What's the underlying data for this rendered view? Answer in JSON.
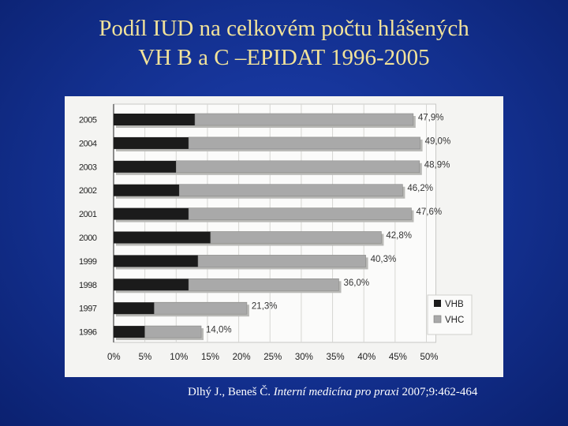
{
  "title_line1": "Podíl IUD na celkovém počtu hlášených",
  "title_line2": "VH B a C –EPIDAT 1996-2005",
  "citation": {
    "authors": "Dlhý J., Beneš Č. ",
    "journal": "Interní medicína pro praxi",
    "ref": " 2007;9:462-464"
  },
  "colors": {
    "title": "#f2e39a",
    "background": "#13308f",
    "vhb": "#1b1b1b",
    "vhc": "#a9a9a9"
  },
  "chart_data": {
    "type": "bar",
    "orientation": "horizontal",
    "stacked": true,
    "categories": [
      "2005",
      "2004",
      "2003",
      "2002",
      "2001",
      "2000",
      "1999",
      "1998",
      "1997",
      "1996"
    ],
    "series": [
      {
        "name": "VHB",
        "values": [
          13.0,
          12.0,
          10.0,
          10.5,
          12.0,
          15.5,
          13.5,
          12.0,
          6.5,
          5.0
        ]
      },
      {
        "name": "VHC",
        "values": [
          34.9,
          37.0,
          38.9,
          35.7,
          35.6,
          27.3,
          26.8,
          24.0,
          14.8,
          9.0
        ]
      }
    ],
    "totals": [
      "47,9%",
      "49,0%",
      "48,9%",
      "46,2%",
      "47,6%",
      "42,8%",
      "40,3%",
      "36,0%",
      "21,3%",
      "14,0%"
    ],
    "xticks": [
      "0%",
      "5%",
      "10%",
      "15%",
      "20%",
      "25%",
      "30%",
      "35%",
      "40%",
      "45%",
      "50%"
    ],
    "xlim": [
      0,
      50
    ],
    "legend": [
      "VHB",
      "VHC"
    ],
    "legend_position": "bottom-right",
    "grid": true
  }
}
